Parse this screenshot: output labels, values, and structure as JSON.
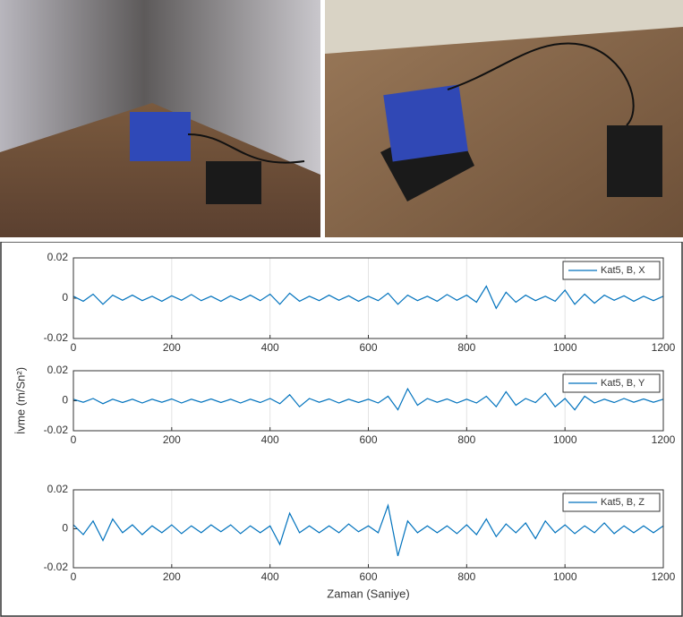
{
  "chart_data": [
    {
      "type": "line",
      "x": [
        0,
        20,
        40,
        60,
        80,
        100,
        120,
        140,
        160,
        180,
        200,
        220,
        240,
        260,
        280,
        300,
        320,
        340,
        360,
        380,
        400,
        420,
        440,
        460,
        480,
        500,
        520,
        540,
        560,
        580,
        600,
        620,
        640,
        660,
        680,
        700,
        720,
        740,
        760,
        780,
        800,
        820,
        840,
        860,
        880,
        900,
        920,
        940,
        960,
        980,
        1000,
        1020,
        1040,
        1060,
        1080,
        1100,
        1120,
        1140,
        1160,
        1180,
        1200
      ],
      "series": [
        {
          "name": "Kat5, B, X",
          "color": "#0072bd",
          "values": [
            0.001,
            -0.0015,
            0.002,
            -0.003,
            0.0015,
            -0.001,
            0.0015,
            -0.0012,
            0.001,
            -0.0015,
            0.0012,
            -0.001,
            0.0018,
            -0.0012,
            0.001,
            -0.0015,
            0.0012,
            -0.001,
            0.0015,
            -0.0012,
            0.002,
            -0.003,
            0.0025,
            -0.0015,
            0.001,
            -0.0012,
            0.0015,
            -0.001,
            0.0012,
            -0.0015,
            0.001,
            -0.0012,
            0.0025,
            -0.003,
            0.0015,
            -0.0012,
            0.001,
            -0.0015,
            0.0018,
            -0.001,
            0.0015,
            -0.002,
            0.006,
            -0.005,
            0.003,
            -0.002,
            0.0015,
            -0.0012,
            0.001,
            -0.0015,
            0.004,
            -0.003,
            0.002,
            -0.0025,
            0.0015,
            -0.001,
            0.0012,
            -0.0015,
            0.001,
            -0.0012,
            0.001
          ]
        }
      ],
      "xlim": [
        0,
        1200
      ],
      "xticks": [
        0,
        200,
        400,
        600,
        800,
        1000,
        1200
      ],
      "ylim": [
        -0.02,
        0.02
      ],
      "yticks": [
        -0.02,
        0,
        0.02
      ],
      "grid": "x",
      "legend": "upper right"
    },
    {
      "type": "line",
      "ylabel": "İvme (m/Sn²)",
      "x": [
        0,
        20,
        40,
        60,
        80,
        100,
        120,
        140,
        160,
        180,
        200,
        220,
        240,
        260,
        280,
        300,
        320,
        340,
        360,
        380,
        400,
        420,
        440,
        460,
        480,
        500,
        520,
        540,
        560,
        580,
        600,
        620,
        640,
        660,
        680,
        700,
        720,
        740,
        760,
        780,
        800,
        820,
        840,
        860,
        880,
        900,
        920,
        940,
        960,
        980,
        1000,
        1020,
        1040,
        1060,
        1080,
        1100,
        1120,
        1140,
        1160,
        1180,
        1200
      ],
      "series": [
        {
          "name": "Kat5, B, Y",
          "color": "#0072bd",
          "values": [
            0.001,
            -0.001,
            0.0015,
            -0.002,
            0.001,
            -0.0012,
            0.001,
            -0.0015,
            0.001,
            -0.001,
            0.0012,
            -0.0015,
            0.001,
            -0.001,
            0.0012,
            -0.0012,
            0.001,
            -0.0015,
            0.001,
            -0.0012,
            0.0015,
            -0.002,
            0.004,
            -0.004,
            0.0015,
            -0.001,
            0.0012,
            -0.0015,
            0.001,
            -0.0012,
            0.001,
            -0.0015,
            0.003,
            -0.006,
            0.008,
            -0.003,
            0.0015,
            -0.001,
            0.0012,
            -0.0015,
            0.001,
            -0.0015,
            0.003,
            -0.004,
            0.006,
            -0.003,
            0.0015,
            -0.0012,
            0.005,
            -0.004,
            0.0015,
            -0.006,
            0.003,
            -0.0015,
            0.001,
            -0.0012,
            0.0015,
            -0.001,
            0.0012,
            -0.001,
            0.001
          ]
        }
      ],
      "xlim": [
        0,
        1200
      ],
      "xticks": [
        0,
        200,
        400,
        600,
        800,
        1000,
        1200
      ],
      "ylim": [
        -0.02,
        0.02
      ],
      "yticks": [
        -0.02,
        0,
        0.02
      ],
      "grid": "x",
      "legend": "upper right"
    },
    {
      "type": "line",
      "xlabel": "Zaman (Saniye)",
      "x": [
        0,
        20,
        40,
        60,
        80,
        100,
        120,
        140,
        160,
        180,
        200,
        220,
        240,
        260,
        280,
        300,
        320,
        340,
        360,
        380,
        400,
        420,
        440,
        460,
        480,
        500,
        520,
        540,
        560,
        580,
        600,
        620,
        640,
        660,
        680,
        700,
        720,
        740,
        760,
        780,
        800,
        820,
        840,
        860,
        880,
        900,
        920,
        940,
        960,
        980,
        1000,
        1020,
        1040,
        1060,
        1080,
        1100,
        1120,
        1140,
        1160,
        1180,
        1200
      ],
      "series": [
        {
          "name": "Kat5, B, Z",
          "color": "#0072bd",
          "values": [
            0.002,
            -0.003,
            0.004,
            -0.006,
            0.005,
            -0.002,
            0.002,
            -0.003,
            0.0015,
            -0.002,
            0.002,
            -0.0025,
            0.0015,
            -0.002,
            0.002,
            -0.0015,
            0.002,
            -0.0025,
            0.0015,
            -0.002,
            0.0015,
            -0.008,
            0.008,
            -0.002,
            0.0015,
            -0.002,
            0.0015,
            -0.002,
            0.0025,
            -0.0015,
            0.0015,
            -0.002,
            0.012,
            -0.014,
            0.004,
            -0.002,
            0.0015,
            -0.002,
            0.0015,
            -0.0025,
            0.002,
            -0.003,
            0.005,
            -0.004,
            0.0025,
            -0.002,
            0.003,
            -0.005,
            0.004,
            -0.002,
            0.002,
            -0.0025,
            0.0015,
            -0.002,
            0.003,
            -0.0025,
            0.0015,
            -0.002,
            0.0015,
            -0.002,
            0.0015
          ]
        }
      ],
      "xlim": [
        0,
        1200
      ],
      "xticks": [
        0,
        200,
        400,
        600,
        800,
        1000,
        1200
      ],
      "ylim": [
        -0.02,
        0.02
      ],
      "yticks": [
        -0.02,
        0,
        0.02
      ],
      "grid": "x",
      "legend": "upper right"
    }
  ]
}
